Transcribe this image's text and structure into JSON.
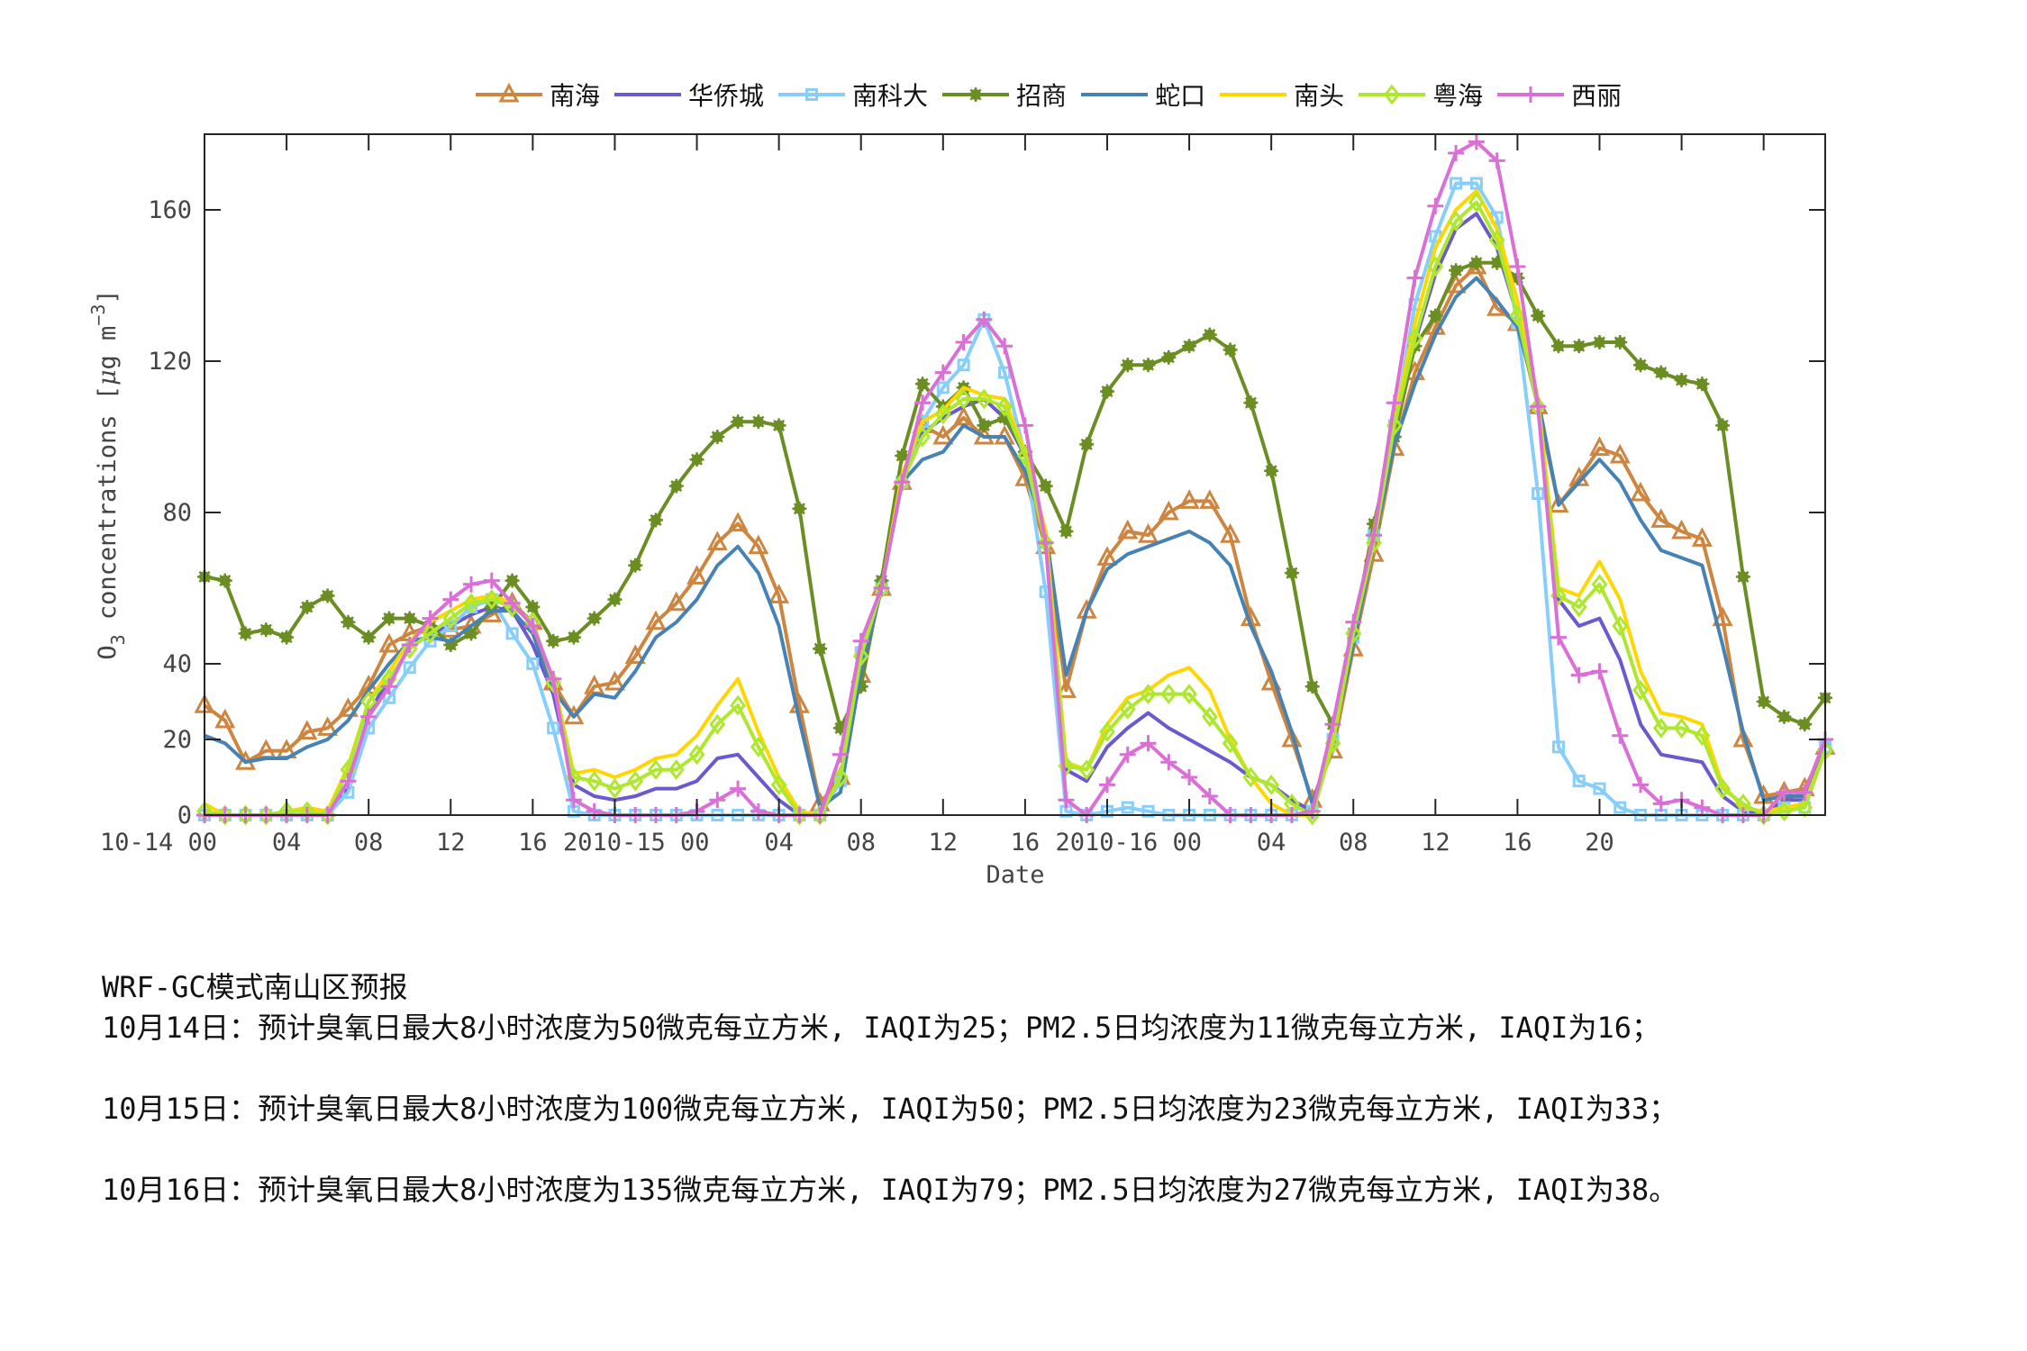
{
  "legend": [
    {
      "label": "南海",
      "color": "#CD853F",
      "marker": "triangle"
    },
    {
      "label": "华侨城",
      "color": "#6A5ACD",
      "marker": "none"
    },
    {
      "label": "南科大",
      "color": "#87CEFA",
      "marker": "square"
    },
    {
      "label": "招商",
      "color": "#6B8E23",
      "marker": "asterisk"
    },
    {
      "label": "蛇口",
      "color": "#4682B4",
      "marker": "none"
    },
    {
      "label": "南头",
      "color": "#FFD700",
      "marker": "none"
    },
    {
      "label": "粤海",
      "color": "#ADE82F",
      "marker": "diamond"
    },
    {
      "label": "西丽",
      "color": "#DA70D6",
      "marker": "plus"
    }
  ],
  "caption": {
    "title": "WRF-GC模式南山区预报",
    "lines": [
      "10月14日：预计臭氧日最大8小时浓度为50微克每立方米, IAQI为25；PM2.5日均浓度为11微克每立方米, IAQI为16；",
      "10月15日：预计臭氧日最大8小时浓度为100微克每立方米, IAQI为50；PM2.5日均浓度为23微克每立方米, IAQI为33；",
      "10月16日：预计臭氧日最大8小时浓度为135微克每立方米, IAQI为79；PM2.5日均浓度为27微克每立方米, IAQI为38。"
    ]
  },
  "chart_data": {
    "type": "line",
    "title": "",
    "xlabel": "Date",
    "ylabel": "O3 concentrations [μg m-3]",
    "ylim": [
      0,
      180
    ],
    "xlim": [
      0,
      79
    ],
    "grid": false,
    "legend_position": "top-center",
    "x_unit": "hour since 2010-10-14 00",
    "x": [
      0,
      1,
      2,
      3,
      4,
      5,
      6,
      7,
      8,
      9,
      10,
      11,
      12,
      13,
      14,
      15,
      16,
      17,
      18,
      19,
      20,
      21,
      22,
      23,
      24,
      25,
      26,
      27,
      28,
      29,
      30,
      31,
      32,
      33,
      34,
      35,
      36,
      37,
      38,
      39,
      40,
      41,
      42,
      43,
      44,
      45,
      46,
      47,
      48,
      49,
      50,
      51,
      52,
      53,
      54,
      55,
      56,
      57,
      58,
      59,
      60,
      61,
      62,
      63,
      64,
      65,
      66,
      67,
      68,
      69,
      70,
      71,
      72,
      73,
      74,
      75,
      76,
      77,
      78,
      79
    ],
    "yticks": [
      0,
      20,
      40,
      80,
      120,
      160
    ],
    "xticks": [
      {
        "h": 0,
        "label": "10-14 00"
      },
      {
        "h": 4,
        "label": "04"
      },
      {
        "h": 8,
        "label": "08"
      },
      {
        "h": 12,
        "label": "12"
      },
      {
        "h": 16,
        "label": "16"
      },
      {
        "h": 20,
        "label": ""
      },
      {
        "h": 24,
        "label": "2010-15 00"
      },
      {
        "h": 28,
        "label": "04"
      },
      {
        "h": 32,
        "label": "08"
      },
      {
        "h": 36,
        "label": "12"
      },
      {
        "h": 40,
        "label": "16"
      },
      {
        "h": 44,
        "label": ""
      },
      {
        "h": 48,
        "label": "2010-16 00"
      },
      {
        "h": 52,
        "label": "04"
      },
      {
        "h": 56,
        "label": "08"
      },
      {
        "h": 60,
        "label": "12"
      },
      {
        "h": 64,
        "label": "16"
      },
      {
        "h": 68,
        "label": "20"
      },
      {
        "h": 72,
        "label": ""
      },
      {
        "h": 76,
        "label": ""
      }
    ],
    "series": [
      {
        "name": "南海",
        "color": "#CD853F",
        "marker": "triangle",
        "values": [
          29,
          25,
          14,
          17,
          17,
          22,
          23,
          28,
          34,
          45,
          48,
          50,
          49,
          50,
          53,
          56,
          51,
          35,
          26,
          34,
          35,
          42,
          51,
          56,
          63,
          72,
          77,
          71,
          58,
          29,
          3,
          10,
          37,
          60,
          88,
          103,
          100,
          105,
          100,
          100,
          89,
          71,
          33,
          54,
          68,
          75,
          74,
          80,
          83,
          83,
          74,
          52,
          35,
          20,
          4,
          17,
          44,
          69,
          97,
          117,
          129,
          140,
          145,
          134,
          130,
          108,
          82,
          89,
          97,
          95,
          85,
          78,
          75,
          73,
          52,
          20,
          5,
          6,
          7,
          18
        ]
      },
      {
        "name": "华侨城",
        "color": "#6A5ACD",
        "marker": "none",
        "values": [
          0,
          0,
          0,
          0,
          0,
          0,
          0,
          7,
          27,
          36,
          44,
          48,
          50,
          53,
          55,
          54,
          45,
          32,
          8,
          5,
          4,
          5,
          7,
          7,
          9,
          15,
          16,
          10,
          4,
          0,
          0,
          9,
          42,
          60,
          89,
          101,
          105,
          108,
          110,
          105,
          95,
          75,
          12,
          9,
          18,
          23,
          27,
          23,
          20,
          17,
          14,
          10,
          8,
          4,
          1,
          20,
          46,
          72,
          100,
          125,
          143,
          155,
          159,
          150,
          132,
          108,
          57,
          50,
          52,
          41,
          24,
          16,
          15,
          14,
          5,
          1,
          0,
          4,
          4,
          17
        ]
      },
      {
        "name": "南科大",
        "color": "#87CEFA",
        "marker": "square",
        "values": [
          0,
          0,
          0,
          0,
          0,
          0,
          0,
          6,
          23,
          31,
          39,
          46,
          50,
          55,
          57,
          48,
          40,
          23,
          1,
          0,
          0,
          0,
          0,
          0,
          0,
          0,
          0,
          0,
          0,
          0,
          0,
          9,
          43,
          60,
          88,
          104,
          113,
          119,
          131,
          117,
          95,
          59,
          1,
          0,
          1,
          2,
          1,
          0,
          0,
          0,
          0,
          0,
          0,
          0,
          1,
          20,
          47,
          74,
          103,
          135,
          153,
          167,
          167,
          158,
          130,
          85,
          18,
          9,
          7,
          2,
          0,
          0,
          0,
          0,
          0,
          0,
          0,
          2,
          2,
          18
        ]
      },
      {
        "name": "招商",
        "color": "#6B8E23",
        "marker": "asterisk",
        "values": [
          63,
          62,
          48,
          49,
          47,
          55,
          58,
          51,
          47,
          52,
          52,
          50,
          45,
          48,
          55,
          62,
          55,
          46,
          47,
          52,
          57,
          66,
          78,
          87,
          94,
          100,
          104,
          104,
          103,
          81,
          44,
          23,
          34,
          62,
          95,
          114,
          108,
          113,
          103,
          105,
          96,
          87,
          75,
          98,
          112,
          119,
          119,
          121,
          124,
          127,
          123,
          109,
          91,
          64,
          34,
          24,
          48,
          77,
          100,
          124,
          132,
          144,
          146,
          146,
          142,
          132,
          124,
          124,
          125,
          125,
          119,
          117,
          115,
          114,
          103,
          63,
          30,
          26,
          24,
          31
        ]
      },
      {
        "name": "蛇口",
        "color": "#4682B4",
        "marker": "none",
        "values": [
          21,
          19,
          14,
          15,
          15,
          18,
          20,
          25,
          33,
          40,
          46,
          47,
          46,
          50,
          54,
          54,
          48,
          33,
          26,
          32,
          31,
          38,
          47,
          51,
          57,
          66,
          71,
          64,
          50,
          25,
          2,
          6,
          38,
          60,
          88,
          94,
          96,
          103,
          100,
          100,
          91,
          75,
          37,
          54,
          65,
          69,
          71,
          73,
          75,
          72,
          66,
          50,
          38,
          22,
          3,
          20,
          45,
          72,
          98,
          114,
          127,
          137,
          142,
          136,
          129,
          110,
          82,
          88,
          94,
          88,
          78,
          70,
          68,
          66,
          45,
          22,
          4,
          5,
          5,
          17
        ]
      },
      {
        "name": "南头",
        "color": "#FFD700",
        "marker": "none",
        "values": [
          3,
          0,
          0,
          0,
          1,
          2,
          1,
          13,
          30,
          38,
          46,
          51,
          54,
          57,
          58,
          56,
          50,
          36,
          11,
          12,
          10,
          12,
          15,
          16,
          21,
          29,
          36,
          22,
          10,
          1,
          0,
          10,
          42,
          60,
          90,
          104,
          107,
          113,
          111,
          110,
          96,
          75,
          14,
          12,
          24,
          31,
          33,
          37,
          39,
          33,
          20,
          10,
          3,
          0,
          0,
          20,
          48,
          75,
          104,
          130,
          150,
          160,
          165,
          155,
          136,
          110,
          60,
          58,
          67,
          57,
          38,
          27,
          26,
          24,
          8,
          2,
          1,
          2,
          3,
          17
        ]
      },
      {
        "name": "粤海",
        "color": "#ADE82F",
        "marker": "diamond",
        "values": [
          1,
          0,
          0,
          0,
          1,
          1,
          0,
          12,
          30,
          36,
          44,
          48,
          52,
          56,
          57,
          55,
          51,
          35,
          10,
          9,
          7,
          9,
          12,
          12,
          16,
          24,
          29,
          18,
          8,
          0,
          0,
          10,
          42,
          60,
          88,
          100,
          106,
          110,
          110,
          108,
          95,
          72,
          13,
          12,
          22,
          28,
          32,
          32,
          32,
          26,
          19,
          10,
          8,
          3,
          0,
          19,
          48,
          72,
          103,
          126,
          145,
          157,
          162,
          152,
          132,
          108,
          58,
          55,
          61,
          50,
          33,
          23,
          23,
          21,
          7,
          3,
          0,
          1,
          2,
          17
        ]
      },
      {
        "name": "西丽",
        "color": "#DA70D6",
        "marker": "plus",
        "values": [
          0,
          0,
          0,
          0,
          0,
          0,
          0,
          9,
          26,
          34,
          45,
          52,
          57,
          61,
          62,
          56,
          50,
          36,
          4,
          1,
          0,
          0,
          0,
          0,
          1,
          4,
          7,
          1,
          0,
          0,
          0,
          16,
          46,
          60,
          88,
          109,
          117,
          125,
          131,
          124,
          103,
          72,
          4,
          0,
          8,
          16,
          19,
          14,
          10,
          5,
          0,
          0,
          0,
          0,
          1,
          24,
          51,
          74,
          109,
          142,
          161,
          175,
          178,
          173,
          145,
          108,
          47,
          37,
          38,
          21,
          8,
          3,
          4,
          2,
          0,
          0,
          0,
          6,
          6,
          20
        ]
      }
    ]
  }
}
